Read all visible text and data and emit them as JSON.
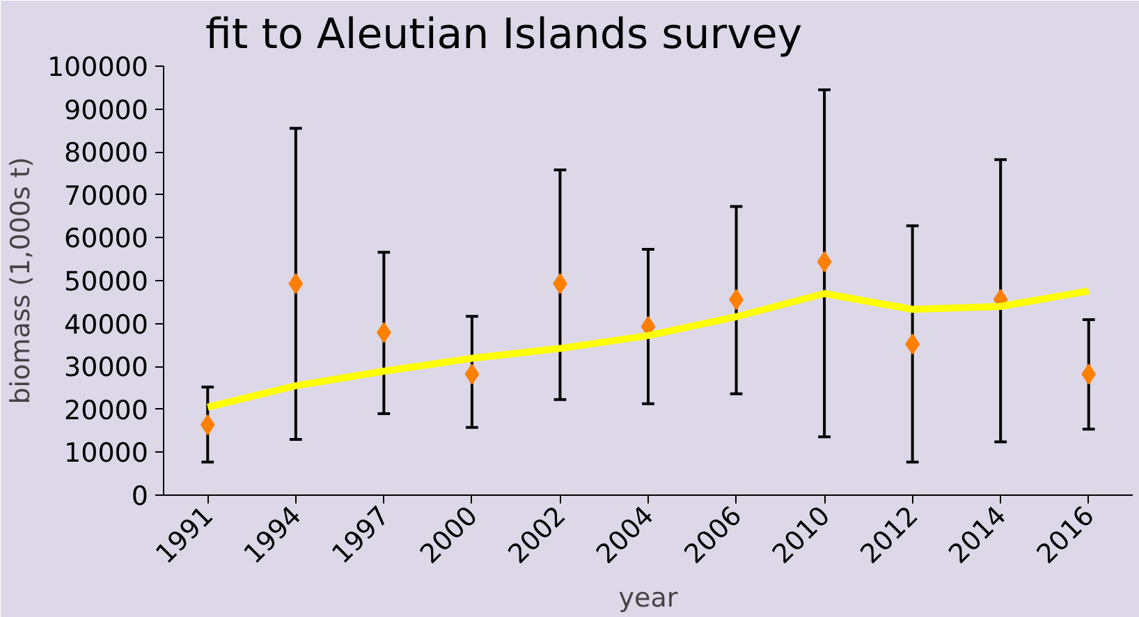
{
  "chart_data": {
    "type": "scatter",
    "title": "fit to Aleutian Islands survey",
    "xlabel": "year",
    "ylabel": "biomass (1,000s t)",
    "categories": [
      "1991",
      "1994",
      "1997",
      "2000",
      "2002",
      "2004",
      "2006",
      "2010",
      "2012",
      "2014",
      "2016"
    ],
    "ylim": [
      0,
      100000
    ],
    "yticks": [
      0,
      10000,
      20000,
      30000,
      40000,
      50000,
      60000,
      70000,
      80000,
      90000,
      100000
    ],
    "grid": false,
    "series": [
      {
        "color": "#ff8000",
        "marker": "diamond",
        "values": [
          16400,
          49300,
          37900,
          28200,
          49300,
          39300,
          45600,
          54400,
          35200,
          45600,
          28200
        ],
        "errors": [
          [
            7700,
            25200
          ],
          [
            13000,
            85500
          ],
          [
            19000,
            56600
          ],
          [
            15800,
            41700
          ],
          [
            22300,
            75800
          ],
          [
            21300,
            57300
          ],
          [
            23600,
            67300
          ],
          [
            13600,
            94500
          ],
          [
            7700,
            62800
          ],
          [
            12400,
            78200
          ],
          [
            15400,
            40900
          ]
        ]
      },
      {
        "type": "line",
        "color": "#ffff00",
        "marker": "none",
        "line_style": "solid",
        "values": [
          20500,
          25500,
          28900,
          31900,
          34200,
          37200,
          41600,
          47000,
          43300,
          44000,
          47600
        ]
      }
    ]
  }
}
